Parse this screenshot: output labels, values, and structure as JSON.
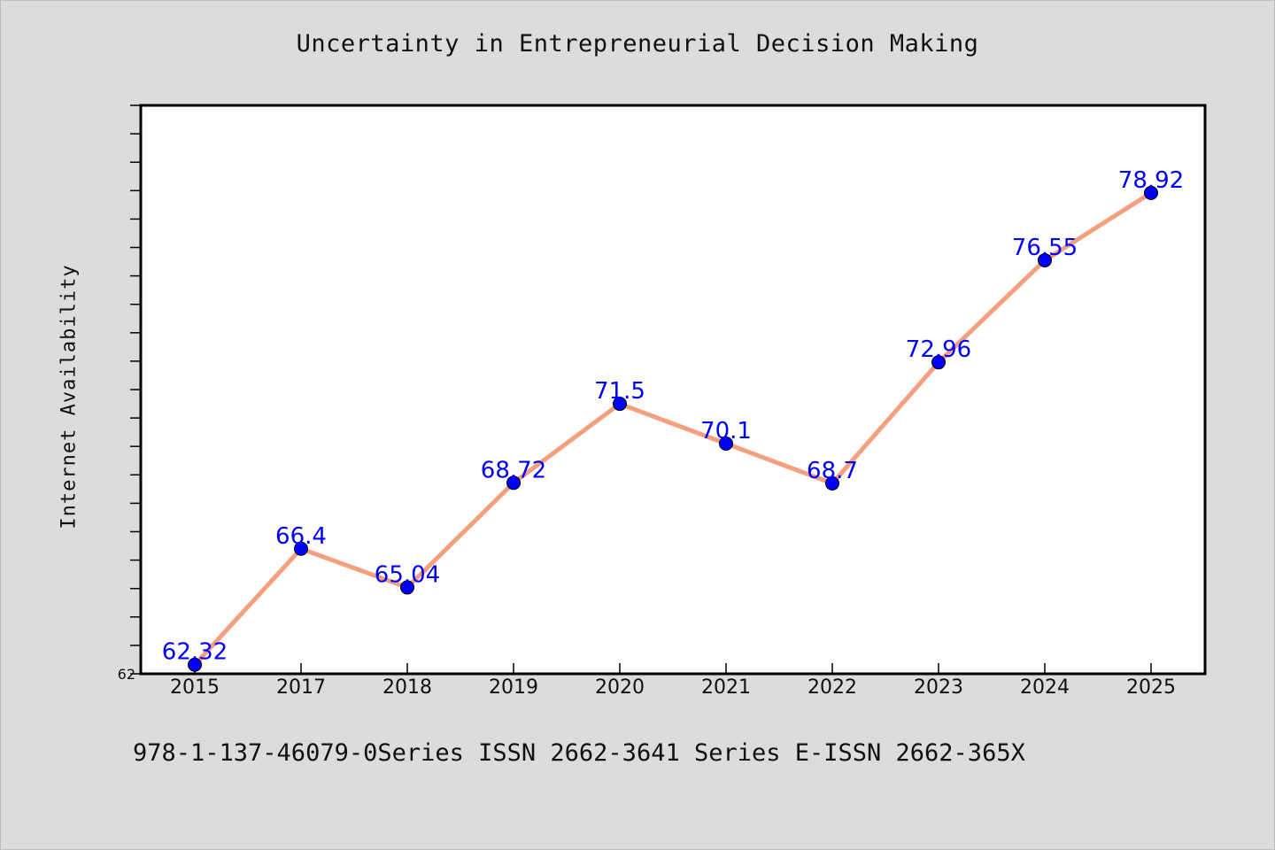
{
  "chart_data": {
    "type": "line",
    "title": "Uncertainty in Entrepreneurial Decision Making",
    "xlabel": "",
    "ylabel": "Internet Availability",
    "categories": [
      "2015",
      "2017",
      "2018",
      "2019",
      "2020",
      "2021",
      "2022",
      "2023",
      "2024",
      "2025"
    ],
    "values": [
      62.32,
      66.4,
      65.04,
      68.72,
      71.5,
      70.1,
      68.7,
      72.96,
      76.55,
      78.92
    ],
    "value_labels": [
      "62.32",
      "66.4",
      "65.04",
      "68.72",
      "71.5",
      "70.1",
      "68.7",
      "72.96",
      "76.55",
      "78.92"
    ],
    "ylim": [
      62,
      82
    ],
    "yticks_labeled": [
      "62"
    ],
    "grid": false,
    "legend": "none",
    "colors": {
      "line": "#f4a07f",
      "marker": "#0000ff",
      "labels": "#0000ff",
      "background": "#dcdcdc",
      "plot_area": "#ffffff"
    }
  },
  "footer": {
    "text": "978-1-137-46079-0Series ISSN 2662-3641 Series E-ISSN 2662-365X"
  }
}
